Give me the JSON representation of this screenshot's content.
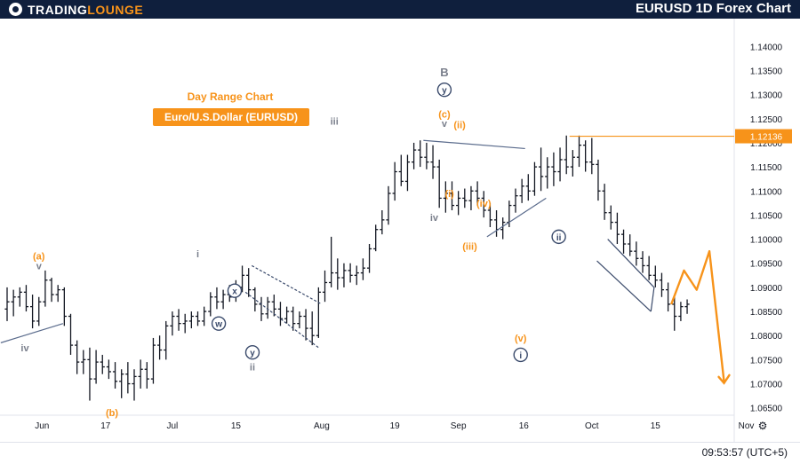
{
  "header": {
    "brand_primary": "TradingLounge",
    "title": "EURUSD 1D Forex Chart"
  },
  "footer": {
    "clock": "09:53:57 (UTC+5)"
  },
  "colors": {
    "header_bg": "#0f1f3d",
    "accent_orange": "#f7931a",
    "wave_grey": "#7a7f8c",
    "wave_navy": "#3a4a6b",
    "projection_orange": "#f7931a",
    "bars": "#131722",
    "line": "#f7931a"
  },
  "chart_data": {
    "type": "ohlc",
    "title": "Day Range Chart",
    "subtitle": "Euro/U.S.Dollar (EURUSD)",
    "ylim": [
      1.062,
      1.143
    ],
    "y_ticks": [
      "1.14000",
      "1.13500",
      "1.13000",
      "1.12500",
      "1.12000",
      "1.11500",
      "1.11000",
      "1.10500",
      "1.10000",
      "1.09500",
      "1.09000",
      "1.08500",
      "1.08000",
      "1.07500",
      "1.07000",
      "1.06500"
    ],
    "x_ticks": [
      {
        "label": "Jun",
        "bar": 5.5
      },
      {
        "label": "17",
        "bar": 15.5
      },
      {
        "label": "Jul",
        "bar": 26
      },
      {
        "label": "15",
        "bar": 36
      },
      {
        "label": "Aug",
        "bar": 49.5
      },
      {
        "label": "19",
        "bar": 61
      },
      {
        "label": "Sep",
        "bar": 71
      },
      {
        "label": "16",
        "bar": 81.3
      },
      {
        "label": "Oct",
        "bar": 92
      },
      {
        "label": "15",
        "bar": 102
      },
      {
        "label": "Nov",
        "bar": 116.3
      }
    ],
    "current_price": "1.12136",
    "current_price_value": 1.12136,
    "bars": [
      [
        1.0855,
        1.09,
        1.083,
        1.087
      ],
      [
        1.087,
        1.0895,
        1.084,
        1.088
      ],
      [
        1.088,
        1.09,
        1.086,
        1.089
      ],
      [
        1.089,
        1.0905,
        1.085,
        1.086
      ],
      [
        1.086,
        1.0885,
        1.0815,
        1.083
      ],
      [
        1.083,
        1.088,
        1.082,
        1.087
      ],
      [
        1.087,
        1.0935,
        1.086,
        1.0915
      ],
      [
        1.0915,
        1.092,
        1.087,
        1.0885
      ],
      [
        1.0885,
        1.0905,
        1.087,
        1.0895
      ],
      [
        1.0895,
        1.09,
        1.082,
        1.084
      ],
      [
        1.084,
        1.0845,
        1.076,
        1.078
      ],
      [
        1.078,
        1.079,
        1.072,
        1.0745
      ],
      [
        1.0745,
        1.077,
        1.072,
        1.075
      ],
      [
        1.075,
        1.0775,
        1.0665,
        1.071
      ],
      [
        1.071,
        1.077,
        1.07,
        1.0745
      ],
      [
        1.0745,
        1.076,
        1.072,
        1.0735
      ],
      [
        1.0735,
        1.075,
        1.071,
        1.0725
      ],
      [
        1.0725,
        1.0745,
        1.069,
        1.0705
      ],
      [
        1.0705,
        1.073,
        1.067,
        1.072
      ],
      [
        1.072,
        1.0745,
        1.068,
        1.07
      ],
      [
        1.07,
        1.073,
        1.0665,
        1.0715
      ],
      [
        1.0715,
        1.075,
        1.069,
        1.073
      ],
      [
        1.073,
        1.0745,
        1.069,
        1.071
      ],
      [
        1.071,
        1.0795,
        1.07,
        1.078
      ],
      [
        1.078,
        1.08,
        1.075,
        1.077
      ],
      [
        1.077,
        1.083,
        1.075,
        1.082
      ],
      [
        1.082,
        1.085,
        1.08,
        1.084
      ],
      [
        1.084,
        1.0855,
        1.081,
        1.0825
      ],
      [
        1.0825,
        1.0845,
        1.0805,
        1.083
      ],
      [
        1.083,
        1.085,
        1.0815,
        1.084
      ],
      [
        1.084,
        1.085,
        1.082,
        1.083
      ],
      [
        1.083,
        1.086,
        1.082,
        1.085
      ],
      [
        1.085,
        1.089,
        1.084,
        1.088
      ],
      [
        1.088,
        1.09,
        1.0855,
        1.087
      ],
      [
        1.087,
        1.0895,
        1.0855,
        1.0885
      ],
      [
        1.0885,
        1.0905,
        1.087,
        1.088
      ],
      [
        1.088,
        1.0915,
        1.087,
        1.09
      ],
      [
        1.09,
        1.0945,
        1.089,
        1.0925
      ],
      [
        1.0925,
        1.094,
        1.088,
        1.0895
      ],
      [
        1.0895,
        1.09,
        1.085,
        1.0865
      ],
      [
        1.0865,
        1.088,
        1.083,
        1.0845
      ],
      [
        1.0845,
        1.088,
        1.0835,
        1.087
      ],
      [
        1.087,
        1.0885,
        1.084,
        1.0855
      ],
      [
        1.0855,
        1.087,
        1.082,
        1.0835
      ],
      [
        1.0835,
        1.086,
        1.0825,
        1.085
      ],
      [
        1.085,
        1.086,
        1.081,
        1.0825
      ],
      [
        1.0825,
        1.085,
        1.0815,
        1.084
      ],
      [
        1.084,
        1.0855,
        1.079,
        1.0815
      ],
      [
        1.0815,
        1.085,
        1.078,
        1.08
      ],
      [
        1.08,
        1.09,
        1.0795,
        1.089
      ],
      [
        1.089,
        1.0935,
        1.087,
        1.091
      ],
      [
        1.091,
        1.1005,
        1.09,
        1.093
      ],
      [
        1.093,
        1.096,
        1.0895,
        1.092
      ],
      [
        1.092,
        1.095,
        1.09,
        1.0935
      ],
      [
        1.0935,
        1.095,
        1.091,
        1.0925
      ],
      [
        1.0925,
        1.0945,
        1.0905,
        1.093
      ],
      [
        1.093,
        1.096,
        1.0915,
        1.094
      ],
      [
        1.094,
        1.099,
        1.093,
        1.098
      ],
      [
        1.098,
        1.103,
        1.0975,
        1.102
      ],
      [
        1.102,
        1.106,
        1.101,
        1.104
      ],
      [
        1.104,
        1.111,
        1.103,
        1.1095
      ],
      [
        1.1095,
        1.116,
        1.108,
        1.114
      ],
      [
        1.114,
        1.1175,
        1.111,
        1.112
      ],
      [
        1.112,
        1.1175,
        1.11,
        1.116
      ],
      [
        1.116,
        1.12,
        1.1145,
        1.1185
      ],
      [
        1.1185,
        1.1205,
        1.115,
        1.117
      ],
      [
        1.117,
        1.12,
        1.1145,
        1.116
      ],
      [
        1.116,
        1.1195,
        1.1125,
        1.115
      ],
      [
        1.115,
        1.1165,
        1.1065,
        1.1085
      ],
      [
        1.1085,
        1.112,
        1.1055,
        1.1095
      ],
      [
        1.1095,
        1.112,
        1.106,
        1.107
      ],
      [
        1.107,
        1.11,
        1.105,
        1.1085
      ],
      [
        1.1085,
        1.1105,
        1.1065,
        1.108
      ],
      [
        1.108,
        1.111,
        1.106,
        1.11
      ],
      [
        1.11,
        1.112,
        1.107,
        1.1085
      ],
      [
        1.1085,
        1.11,
        1.1045,
        1.106
      ],
      [
        1.106,
        1.1075,
        1.1025,
        1.104
      ],
      [
        1.104,
        1.106,
        1.1005,
        1.102
      ],
      [
        1.102,
        1.1045,
        1.1,
        1.1035
      ],
      [
        1.1035,
        1.108,
        1.1025,
        1.107
      ],
      [
        1.107,
        1.1105,
        1.1055,
        1.109
      ],
      [
        1.109,
        1.1125,
        1.1075,
        1.111
      ],
      [
        1.111,
        1.1135,
        1.108,
        1.11
      ],
      [
        1.11,
        1.116,
        1.109,
        1.115
      ],
      [
        1.115,
        1.119,
        1.11,
        1.113
      ],
      [
        1.113,
        1.117,
        1.1105,
        1.115
      ],
      [
        1.115,
        1.118,
        1.111,
        1.114
      ],
      [
        1.114,
        1.119,
        1.112,
        1.1165
      ],
      [
        1.1165,
        1.1215,
        1.1135,
        1.115
      ],
      [
        1.115,
        1.1185,
        1.113,
        1.117
      ],
      [
        1.117,
        1.1215,
        1.115,
        1.1195
      ],
      [
        1.1195,
        1.1205,
        1.114,
        1.116
      ],
      [
        1.116,
        1.121,
        1.1135,
        1.1155
      ],
      [
        1.1155,
        1.1165,
        1.108,
        1.11
      ],
      [
        1.11,
        1.1115,
        1.104,
        1.1055
      ],
      [
        1.1055,
        1.107,
        1.102,
        1.1035
      ],
      [
        1.1035,
        1.1055,
        1.099,
        1.101
      ],
      [
        1.101,
        1.102,
        1.097,
        1.099
      ],
      [
        1.099,
        1.101,
        1.0965,
        1.0975
      ],
      [
        1.0975,
        1.0995,
        1.0945,
        1.096
      ],
      [
        1.096,
        1.0975,
        1.093,
        1.0945
      ],
      [
        1.0945,
        1.0965,
        1.0915,
        1.0925
      ],
      [
        1.0925,
        1.0945,
        1.09,
        1.0915
      ],
      [
        1.0915,
        1.093,
        1.088,
        1.0895
      ],
      [
        1.0895,
        1.091,
        1.085,
        1.0865
      ],
      [
        1.0865,
        1.088,
        1.081,
        1.084
      ],
      [
        1.084,
        1.087,
        1.083,
        1.086
      ],
      [
        1.086,
        1.0875,
        1.0845,
        1.0865
      ]
    ],
    "annotations": [
      {
        "text": "(a)",
        "bar": 5,
        "price": 1.0965,
        "color": "orange"
      },
      {
        "text": "v",
        "bar": 5,
        "price": 1.0945,
        "color": "grey"
      },
      {
        "text": "iv",
        "bar": 2.8,
        "price": 1.0775,
        "color": "grey"
      },
      {
        "text": "(b)",
        "bar": 16.5,
        "price": 1.064,
        "color": "orange"
      },
      {
        "text": "i",
        "bar": 30,
        "price": 1.097,
        "color": "grey"
      },
      {
        "text": "x",
        "bar": 35.8,
        "price": 1.0893,
        "color": "navy-circle"
      },
      {
        "text": "w",
        "bar": 33.3,
        "price": 1.0825,
        "color": "navy-circle"
      },
      {
        "text": "y",
        "bar": 38.6,
        "price": 1.0765,
        "color": "navy-circle"
      },
      {
        "text": "ii",
        "bar": 38.6,
        "price": 1.0735,
        "color": "grey"
      },
      {
        "text": "iii",
        "bar": 51.5,
        "price": 1.1245,
        "color": "grey"
      },
      {
        "text": "iv",
        "bar": 67.2,
        "price": 1.1045,
        "color": "grey"
      },
      {
        "text": "B",
        "bar": 68.8,
        "price": 1.1345,
        "color": "grey"
      },
      {
        "text": "y",
        "bar": 68.8,
        "price": 1.131,
        "color": "navy-circle"
      },
      {
        "text": "(c)",
        "bar": 68.8,
        "price": 1.126,
        "color": "orange"
      },
      {
        "text": "v",
        "bar": 68.8,
        "price": 1.124,
        "color": "grey"
      },
      {
        "text": "(ii)",
        "bar": 71.2,
        "price": 1.1238,
        "color": "orange"
      },
      {
        "text": "(i)",
        "bar": 69.6,
        "price": 1.1095,
        "color": "orange"
      },
      {
        "text": "(iv)",
        "bar": 75,
        "price": 1.1075,
        "color": "orange"
      },
      {
        "text": "(iii)",
        "bar": 72.8,
        "price": 1.0985,
        "color": "orange"
      },
      {
        "text": "ii",
        "bar": 86.8,
        "price": 1.1005,
        "color": "navy-circle"
      },
      {
        "text": "(v)",
        "bar": 80.8,
        "price": 1.0795,
        "color": "orange"
      },
      {
        "text": "i",
        "bar": 80.8,
        "price": 1.076,
        "color": "navy-circle"
      }
    ]
  }
}
